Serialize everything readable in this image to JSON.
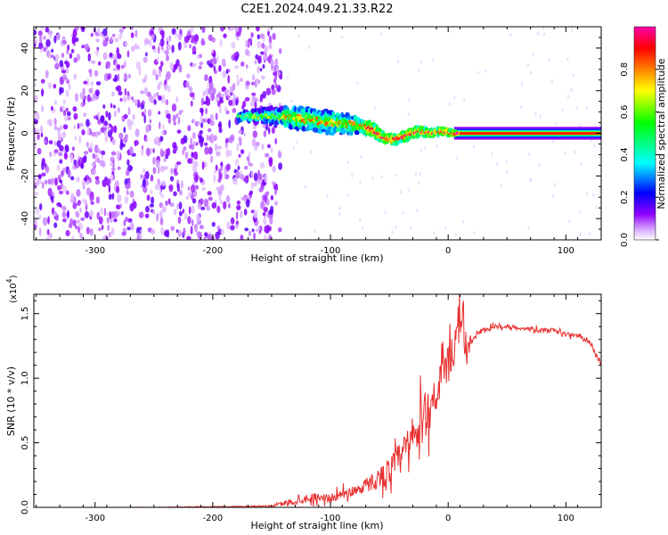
{
  "chart_data": [
    {
      "type": "heatmap",
      "title": "C2E1.2024.049.21.33.R22",
      "xlabel": "Height of straight line (km)",
      "ylabel": "Frequency (Hz)",
      "xlim": [
        -352,
        130
      ],
      "ylim": [
        -50,
        50
      ],
      "x_ticks": [
        "-300",
        "-200",
        "-100",
        "0",
        "100"
      ],
      "y_ticks": [
        "-40",
        "-20",
        "0",
        "20",
        "40"
      ],
      "colorbar": {
        "label": "Normalized spectral amplitude",
        "range": [
          0.0,
          1.0
        ],
        "ticks": [
          "0.0",
          "0.2",
          "0.4",
          "0.6",
          "0.8"
        ],
        "colors": [
          "#ffffff",
          "#d8a8ff",
          "#9000ff",
          "#0000ff",
          "#00ffff",
          "#00ff00",
          "#ffff00",
          "#ff8000",
          "#ff0000",
          "#ff00aa"
        ]
      },
      "signal_track": [
        {
          "x": -175,
          "f": 8,
          "halfwidth": 2
        },
        {
          "x": -150,
          "f": 8,
          "halfwidth": 4
        },
        {
          "x": -125,
          "f": 7,
          "halfwidth": 5
        },
        {
          "x": -100,
          "f": 5,
          "halfwidth": 5
        },
        {
          "x": -80,
          "f": 4,
          "halfwidth": 4
        },
        {
          "x": -65,
          "f": 2,
          "halfwidth": 3
        },
        {
          "x": -55,
          "f": -2,
          "halfwidth": 2
        },
        {
          "x": -45,
          "f": -3,
          "halfwidth": 2
        },
        {
          "x": -35,
          "f": -1,
          "halfwidth": 2
        },
        {
          "x": -25,
          "f": 1,
          "halfwidth": 2
        },
        {
          "x": -15,
          "f": 0,
          "halfwidth": 1.5
        },
        {
          "x": -5,
          "f": 1,
          "halfwidth": 1.5
        },
        {
          "x": 5,
          "f": 0,
          "halfwidth": 1
        },
        {
          "x": 130,
          "f": 0,
          "halfwidth": 1
        }
      ],
      "noise_region_xmax": -150
    },
    {
      "type": "line",
      "xlabel": "Height of straight line (km)",
      "ylabel": "SNR (10 * v/v)",
      "y_multiplier": "(x10",
      "y_multiplier_exp": "4",
      "y_multiplier_close": ")",
      "xlim": [
        -352,
        130
      ],
      "ylim": [
        0,
        16500
      ],
      "x_ticks": [
        "-300",
        "-200",
        "-100",
        "0",
        "100"
      ],
      "y_ticks": [
        "0.0",
        "0.5",
        "1.0",
        "1.5"
      ],
      "series": [
        {
          "color": "#e83030",
          "x": [
            -352,
            -300,
            -250,
            -200,
            -150,
            -130,
            -120,
            -110,
            -100,
            -90,
            -80,
            -70,
            -60,
            -50,
            -40,
            -30,
            -20,
            -10,
            0,
            10,
            15,
            20,
            30,
            40,
            50,
            60,
            70,
            80,
            90,
            100,
            110,
            120,
            125,
            130
          ],
          "y": [
            0,
            0,
            0,
            50,
            100,
            500,
            700,
            800,
            700,
            1000,
            1300,
            1700,
            2200,
            2800,
            3900,
            5200,
            7000,
            9000,
            11000,
            13500,
            12500,
            13000,
            13700,
            14000,
            14000,
            13900,
            13800,
            13700,
            13700,
            13400,
            13300,
            12800,
            12000,
            11000
          ],
          "noise": [
            0,
            0,
            30,
            60,
            120,
            600,
            600,
            600,
            600,
            700,
            800,
            1000,
            1400,
            2000,
            2500,
            3000,
            3500,
            3000,
            2500,
            2500,
            2000,
            800,
            400,
            300,
            300,
            300,
            300,
            300,
            300,
            300,
            300,
            400,
            400,
            400
          ]
        }
      ]
    }
  ]
}
